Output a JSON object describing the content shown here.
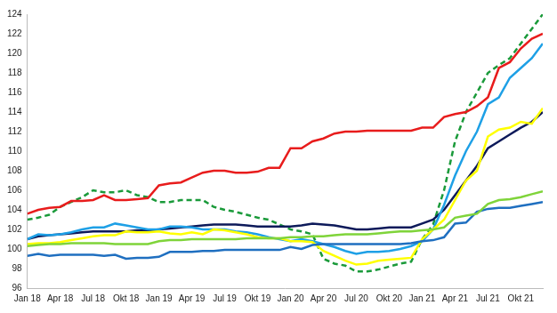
{
  "chart_data": {
    "type": "line",
    "categories": [
      "Jan 18",
      null,
      null,
      "Apr 18",
      null,
      null,
      "Jul 18",
      null,
      null,
      "Okt 18",
      null,
      null,
      "Jan 19",
      null,
      null,
      "Apr 19",
      null,
      null,
      "Jul 19",
      null,
      null,
      "Okt 19",
      null,
      null,
      "Jan 20",
      null,
      null,
      "Apr 20",
      null,
      null,
      "Jul 20",
      null,
      null,
      "Okt 20",
      null,
      null,
      "Jan 21",
      null,
      null,
      "Apr 21",
      null,
      null,
      "Jul 21",
      null,
      null,
      "Okt 21",
      null,
      null
    ],
    "series": [
      {
        "color": "#7fd43a",
        "values": [
          100.3,
          100.4,
          100.5,
          100.5,
          100.6,
          100.6,
          100.6,
          100.6,
          100.5,
          100.5,
          100.5,
          100.5,
          100.8,
          100.9,
          100.9,
          101.0,
          101.0,
          101.0,
          101.0,
          101.0,
          101.1,
          101.1,
          101.1,
          101.1,
          101.2,
          101.2,
          101.3,
          101.3,
          101.4,
          101.5,
          101.5,
          101.5,
          101.6,
          101.7,
          101.8,
          101.8,
          101.9,
          102.0,
          102.2,
          103.2,
          103.4,
          103.6,
          104.6,
          105.0,
          105.1,
          105.3,
          105.6,
          105.9
        ]
      },
      {
        "color": "#1f6fc0",
        "values": [
          99.3,
          99.5,
          99.3,
          99.4,
          99.4,
          99.4,
          99.4,
          99.3,
          99.4,
          99.0,
          99.1,
          99.1,
          99.2,
          99.7,
          99.7,
          99.7,
          99.8,
          99.8,
          99.9,
          99.9,
          99.9,
          99.9,
          99.9,
          99.9,
          100.2,
          100.0,
          100.4,
          100.5,
          100.5,
          100.5,
          100.5,
          100.5,
          100.5,
          100.5,
          100.5,
          100.6,
          100.8,
          100.9,
          101.2,
          102.6,
          102.7,
          103.8,
          104.1,
          104.2,
          104.2,
          104.4,
          104.6,
          104.8
        ]
      },
      {
        "color": "#ffff00",
        "values": [
          100.5,
          100.6,
          100.6,
          100.7,
          100.9,
          101.1,
          101.3,
          101.4,
          101.4,
          101.8,
          101.7,
          101.7,
          101.8,
          101.6,
          101.5,
          101.7,
          101.5,
          102.0,
          101.9,
          101.7,
          101.5,
          101.2,
          101.1,
          101.1,
          100.8,
          100.8,
          100.7,
          99.8,
          99.3,
          98.8,
          98.4,
          98.5,
          98.8,
          98.9,
          99.0,
          99.1,
          101.0,
          102.0,
          103.0,
          105.0,
          107.0,
          108.0,
          111.5,
          112.2,
          112.4,
          113.0,
          112.8,
          114.4
        ]
      },
      {
        "color": "#1ea0e6",
        "values": [
          101.0,
          101.5,
          101.4,
          101.5,
          101.7,
          102.0,
          102.2,
          102.2,
          102.6,
          102.4,
          102.2,
          102.0,
          102.0,
          102.3,
          102.3,
          102.2,
          102.0,
          102.0,
          102.0,
          101.8,
          101.7,
          101.5,
          101.2,
          101.0,
          100.8,
          101.0,
          100.8,
          100.5,
          100.2,
          99.8,
          99.5,
          99.7,
          99.7,
          99.8,
          100.0,
          100.3,
          100.8,
          102.0,
          104.5,
          107.5,
          110.0,
          112.0,
          114.8,
          115.5,
          117.5,
          118.5,
          119.5,
          121.0
        ]
      },
      {
        "color": "#0d1a5a",
        "values": [
          101.0,
          101.3,
          101.4,
          101.5,
          101.6,
          101.7,
          101.8,
          101.8,
          101.8,
          101.8,
          101.9,
          101.9,
          102.0,
          102.1,
          102.2,
          102.3,
          102.4,
          102.5,
          102.5,
          102.5,
          102.4,
          102.3,
          102.3,
          102.3,
          102.3,
          102.4,
          102.6,
          102.5,
          102.4,
          102.2,
          102.0,
          102.0,
          102.1,
          102.2,
          102.2,
          102.2,
          102.6,
          103.0,
          104.0,
          105.5,
          107.0,
          108.5,
          110.3,
          111.0,
          111.7,
          112.4,
          113.0,
          114.0
        ]
      },
      {
        "color": "#e81c1c",
        "values": [
          103.6,
          104.0,
          104.2,
          104.3,
          104.9,
          104.9,
          105.0,
          105.5,
          105.0,
          105.0,
          105.1,
          105.2,
          106.5,
          106.7,
          106.8,
          107.3,
          107.8,
          108.0,
          108.0,
          107.8,
          107.8,
          107.9,
          108.3,
          108.3,
          110.3,
          110.3,
          111.0,
          111.3,
          111.8,
          112.0,
          112.0,
          112.1,
          112.1,
          112.1,
          112.1,
          112.1,
          112.4,
          112.4,
          113.5,
          113.8,
          114.0,
          114.6,
          115.5,
          118.5,
          119.1,
          120.5,
          121.5,
          122.0
        ]
      },
      {
        "color": "#1a9a3a",
        "line_style": "dashed",
        "values": [
          103.0,
          103.2,
          103.5,
          104.3,
          104.8,
          105.3,
          106.0,
          105.8,
          105.8,
          106.0,
          105.5,
          105.3,
          104.8,
          104.8,
          105.0,
          105.0,
          105.0,
          104.3,
          104.0,
          103.8,
          103.5,
          103.2,
          103.0,
          102.5,
          102.0,
          101.8,
          101.5,
          99.0,
          98.5,
          98.3,
          97.7,
          97.7,
          97.9,
          98.2,
          98.5,
          98.7,
          101.0,
          102.5,
          106.0,
          111.0,
          114.0,
          116.0,
          118.0,
          118.8,
          119.5,
          121.0,
          122.5,
          124.0
        ]
      }
    ],
    "ylim": [
      96,
      124
    ],
    "yticks": [
      96,
      98,
      100,
      102,
      104,
      106,
      108,
      110,
      112,
      114,
      116,
      118,
      120,
      122,
      124
    ],
    "grid": false
  }
}
